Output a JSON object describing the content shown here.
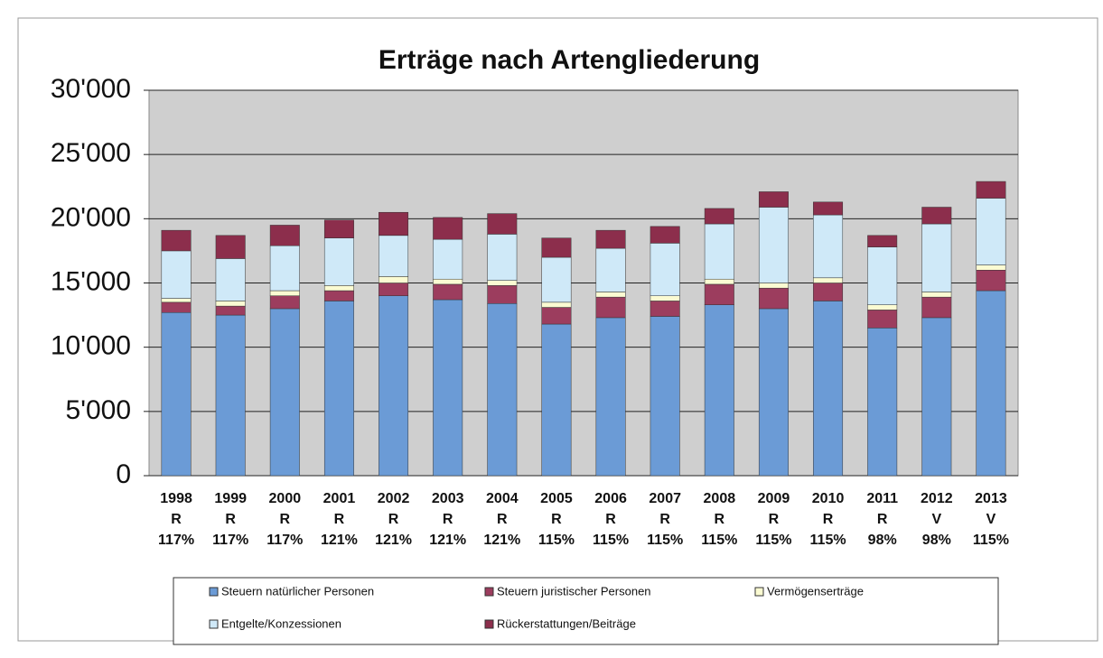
{
  "chart_data": {
    "type": "stacked_bar",
    "title": "Erträge nach Artengliederung",
    "categories": [
      [
        "1998",
        "R",
        "117%"
      ],
      [
        "1999",
        "R",
        "117%"
      ],
      [
        "2000",
        "R",
        "117%"
      ],
      [
        "2001",
        "R",
        "121%"
      ],
      [
        "2002",
        "R",
        "121%"
      ],
      [
        "2003",
        "R",
        "121%"
      ],
      [
        "2004",
        "R",
        "121%"
      ],
      [
        "2005",
        "R",
        "115%"
      ],
      [
        "2006",
        "R",
        "115%"
      ],
      [
        "2007",
        "R",
        "115%"
      ],
      [
        "2008",
        "R",
        "115%"
      ],
      [
        "2009",
        "R",
        "115%"
      ],
      [
        "2010",
        "R",
        "115%"
      ],
      [
        "2011",
        "R",
        "98%"
      ],
      [
        "2012",
        "V",
        "98%"
      ],
      [
        "2013",
        "V",
        "115%"
      ]
    ],
    "series": [
      {
        "name": "Steuern natürlicher Personen",
        "color": "#6b9bd6",
        "values": [
          12700,
          12500,
          13000,
          13600,
          14000,
          13700,
          13400,
          11800,
          12300,
          12400,
          13300,
          13000,
          13600,
          11500,
          12300,
          14400
        ]
      },
      {
        "name": "Steuern juristischer Personen",
        "color": "#9c3d5e",
        "values": [
          800,
          700,
          1000,
          800,
          1000,
          1200,
          1400,
          1300,
          1600,
          1200,
          1600,
          1600,
          1400,
          1400,
          1600,
          1600
        ]
      },
      {
        "name": "Vermögenserträge",
        "color": "#fbfbd2",
        "values": [
          300,
          400,
          400,
          400,
          500,
          400,
          400,
          400,
          400,
          400,
          400,
          400,
          400,
          400,
          400,
          400
        ]
      },
      {
        "name": "Entgelte/Konzessionen",
        "color": "#cfe9f8",
        "values": [
          3700,
          3300,
          3500,
          3700,
          3200,
          3100,
          3600,
          3500,
          3400,
          4100,
          4300,
          5900,
          4900,
          4500,
          5300,
          5200
        ]
      },
      {
        "name": "Rückerstattungen/Beiträge",
        "color": "#8c2e4c",
        "values": [
          1600,
          1800,
          1600,
          1400,
          1800,
          1700,
          1600,
          1500,
          1400,
          1300,
          1200,
          1200,
          1000,
          900,
          1300,
          1300
        ]
      }
    ],
    "ylim": [
      0,
      30000
    ],
    "yticks": [
      0,
      {
        "value": 5000,
        "label": "5'000"
      },
      {
        "value": 10000,
        "label": "10'000"
      },
      {
        "value": 15000,
        "label": "15'000"
      },
      {
        "value": 20000,
        "label": "20'000"
      },
      {
        "value": 25000,
        "label": "25'000"
      },
      {
        "value": 30000,
        "label": "30'000"
      }
    ],
    "grid": true
  }
}
